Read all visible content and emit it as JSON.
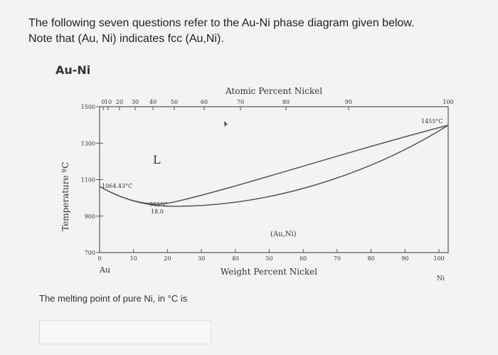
{
  "header": {
    "line1": "The following seven questions refer to the Au-Ni phase diagram given below.",
    "line2": "Note that (Au, Ni) indicates fcc (Au,Ni)."
  },
  "diagram": {
    "title": "Au-Ni",
    "top_axis_label": "Atomic Percent Nickel",
    "bottom_axis_label": "Weight Percent Nickel",
    "left_axis_label": "Temperature ºC",
    "top_ticks": [
      0,
      10,
      20,
      30,
      40,
      50,
      60,
      70,
      80,
      90,
      100
    ],
    "bottom_ticks": [
      0,
      10,
      20,
      30,
      40,
      50,
      60,
      70,
      80,
      90,
      100
    ],
    "left_ticks": [
      1500,
      1300,
      1100,
      900,
      700
    ],
    "region_liquid": "L",
    "region_solid": "(Au,Ni)",
    "au_melting": "1064.43°C",
    "minimum_temp": "955°C",
    "minimum_comp": "18.0",
    "ni_melting": "1455°C",
    "left_element": "Au",
    "right_element": "Ni"
  },
  "question": {
    "text": "The melting point of pure Ni, in °C is"
  }
}
